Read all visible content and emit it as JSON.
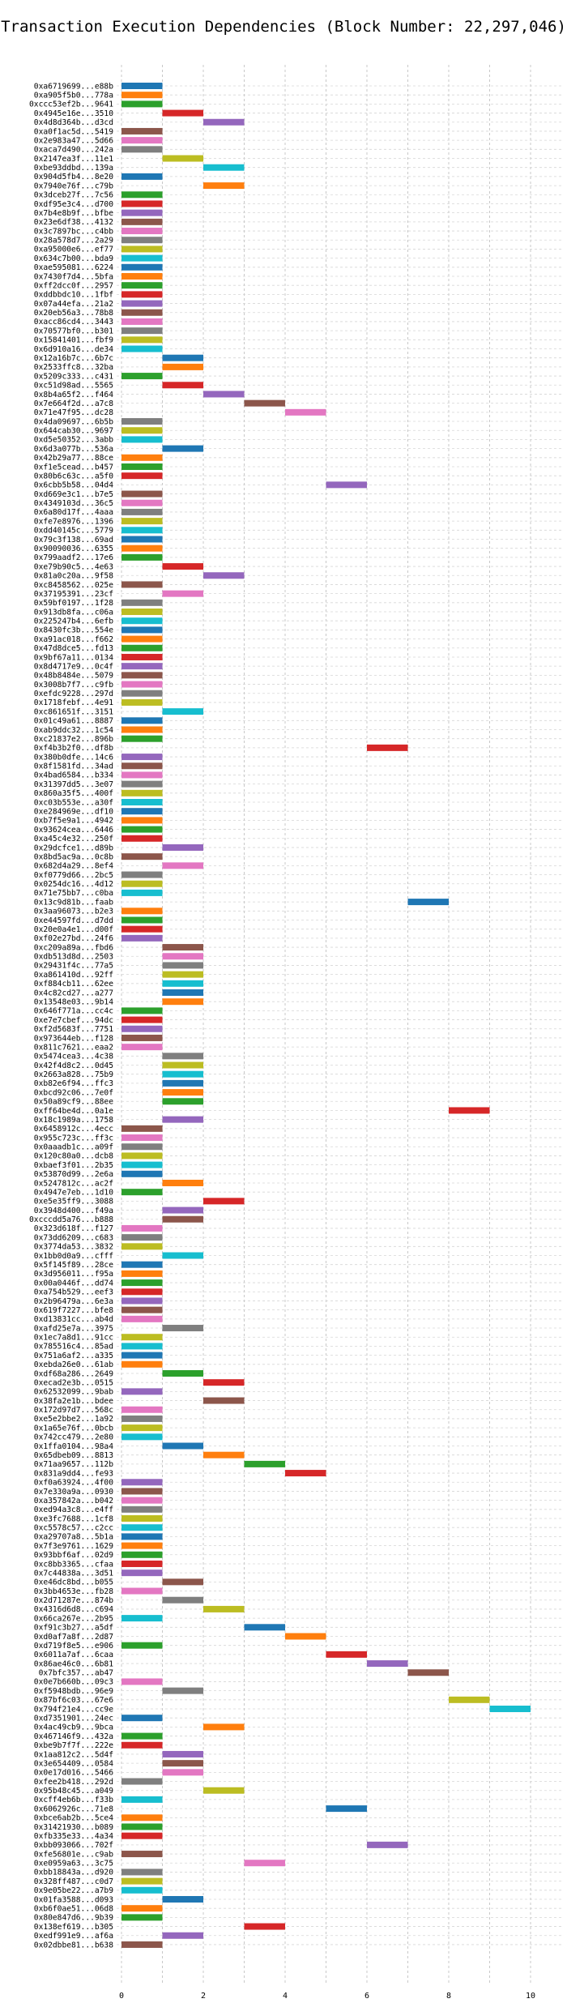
{
  "chart_data": {
    "type": "gantt",
    "title": "Transaction Execution Dependencies (Block Number: 22,297,046)",
    "xlabel": "",
    "ylabel": "",
    "xlim": [
      0,
      10.8
    ],
    "xticks": [
      0,
      2,
      4,
      6,
      8,
      10
    ],
    "grid": true,
    "legend": "none",
    "palette": [
      "#1f77b4",
      "#ff7f0e",
      "#2ca02c",
      "#d62728",
      "#9467bd",
      "#8c564b",
      "#e377c2",
      "#7f7f7f",
      "#bcbd22",
      "#17becf"
    ],
    "transactions": [
      {
        "tx": "0xa6719699...e88b",
        "start": 0
      },
      {
        "tx": "0xa905f5b0...778a",
        "start": 0
      },
      {
        "tx": "0xccc53ef2b...9641",
        "start": 0
      },
      {
        "tx": "0x4945e16e...3510",
        "start": 1
      },
      {
        "tx": "0x4d8d364b...d3cd",
        "start": 2
      },
      {
        "tx": "0xa0f1ac5d...5419",
        "start": 0
      },
      {
        "tx": "0x2e983a47...5d66",
        "start": 0
      },
      {
        "tx": "0xaca7d490...242a",
        "start": 0
      },
      {
        "tx": "0x2147ea3f...11e1",
        "start": 1
      },
      {
        "tx": "0xbe93ddbd...139a",
        "start": 2
      },
      {
        "tx": "0x904d5fb4...8e20",
        "start": 0
      },
      {
        "tx": "0x7940e76f...c79b",
        "start": 2
      },
      {
        "tx": "0x3dceb27f...7c56",
        "start": 0
      },
      {
        "tx": "0xdf95e3c4...d700",
        "start": 0
      },
      {
        "tx": "0x7b4e8b9f...bfbe",
        "start": 0
      },
      {
        "tx": "0x23e6df38...4132",
        "start": 0
      },
      {
        "tx": "0x3c7897bc...c4bb",
        "start": 0
      },
      {
        "tx": "0x28a578d7...2a29",
        "start": 0
      },
      {
        "tx": "0xa95000e6...ef77",
        "start": 0
      },
      {
        "tx": "0x634c7b00...bda9",
        "start": 0
      },
      {
        "tx": "0xae595081...6224",
        "start": 0
      },
      {
        "tx": "0x7430f7d4...5bfa",
        "start": 0
      },
      {
        "tx": "0xff2dcc0f...2957",
        "start": 0
      },
      {
        "tx": "0xddbbdc10...1fbf",
        "start": 0
      },
      {
        "tx": "0x07a44efa...21a2",
        "start": 0
      },
      {
        "tx": "0x20eb56a3...78b8",
        "start": 0
      },
      {
        "tx": "0xacc86cd4...3443",
        "start": 0
      },
      {
        "tx": "0x70577bf0...b301",
        "start": 0
      },
      {
        "tx": "0x15841401...fbf9",
        "start": 0
      },
      {
        "tx": "0x6d910a16...de34",
        "start": 0
      },
      {
        "tx": "0x12a16b7c...6b7c",
        "start": 1
      },
      {
        "tx": "0x2533ffc8...32ba",
        "start": 1
      },
      {
        "tx": "0x5209c333...c431",
        "start": 0
      },
      {
        "tx": "0xc51d98ad...5565",
        "start": 1
      },
      {
        "tx": "0x8b4a65f2...f464",
        "start": 2
      },
      {
        "tx": "0x7e664f2d...a7c8",
        "start": 3
      },
      {
        "tx": "0x71e47f95...dc28",
        "start": 4
      },
      {
        "tx": "0x4da09697...6b5b",
        "start": 0
      },
      {
        "tx": "0x644cab30...9697",
        "start": 0
      },
      {
        "tx": "0xd5e50352...3abb",
        "start": 0
      },
      {
        "tx": "0x6d3a077b...536a",
        "start": 1
      },
      {
        "tx": "0x42b29a77...88ce",
        "start": 0
      },
      {
        "tx": "0xf1e5cead...b457",
        "start": 0
      },
      {
        "tx": "0x80b6c63c...a5f0",
        "start": 0
      },
      {
        "tx": "0x6cbb5b58...04d4",
        "start": 5
      },
      {
        "tx": "0xd669e3c1...b7e5",
        "start": 0
      },
      {
        "tx": "0x4349103d...36c5",
        "start": 0
      },
      {
        "tx": "0x6a80d17f...4aaa",
        "start": 0
      },
      {
        "tx": "0xfe7e8976...1396",
        "start": 0
      },
      {
        "tx": "0xdd40145c...5779",
        "start": 0
      },
      {
        "tx": "0x79c3f138...69ad",
        "start": 0
      },
      {
        "tx": "0x90090036...6355",
        "start": 0
      },
      {
        "tx": "0x799aadf2...17e6",
        "start": 0
      },
      {
        "tx": "0xe79b90c5...4e63",
        "start": 1
      },
      {
        "tx": "0x81a0c20a...9f58",
        "start": 2
      },
      {
        "tx": "0xc8458562...025e",
        "start": 0
      },
      {
        "tx": "0x37195391...23cf",
        "start": 1
      },
      {
        "tx": "0x59bf0197...1f28",
        "start": 0
      },
      {
        "tx": "0x913db8fa...c06a",
        "start": 0
      },
      {
        "tx": "0x225247b4...6efb",
        "start": 0
      },
      {
        "tx": "0x8430fc3b...554e",
        "start": 0
      },
      {
        "tx": "0xa91ac018...f662",
        "start": 0
      },
      {
        "tx": "0x47d8dce5...fd13",
        "start": 0
      },
      {
        "tx": "0x9bf67a11...0134",
        "start": 0
      },
      {
        "tx": "0x8d4717e9...0c4f",
        "start": 0
      },
      {
        "tx": "0x48b8484e...5079",
        "start": 0
      },
      {
        "tx": "0x3008b7f7...c9fb",
        "start": 0
      },
      {
        "tx": "0xefdc9228...297d",
        "start": 0
      },
      {
        "tx": "0x1718febf...4e91",
        "start": 0
      },
      {
        "tx": "0xc861651f...3151",
        "start": 1
      },
      {
        "tx": "0x01c49a61...8887",
        "start": 0
      },
      {
        "tx": "0xab9ddc32...1c54",
        "start": 0
      },
      {
        "tx": "0xc21837e2...896b",
        "start": 0
      },
      {
        "tx": "0xf4b3b2f0...df8b",
        "start": 6
      },
      {
        "tx": "0x380b0dfe...14c6",
        "start": 0
      },
      {
        "tx": "0x8f1581fd...34ad",
        "start": 0
      },
      {
        "tx": "0x4bad6584...b334",
        "start": 0
      },
      {
        "tx": "0x31397dd5...3e07",
        "start": 0
      },
      {
        "tx": "0x860a35f5...400f",
        "start": 0
      },
      {
        "tx": "0xc03b553e...a30f",
        "start": 0
      },
      {
        "tx": "0xe284969e...df10",
        "start": 0
      },
      {
        "tx": "0xb7f5e9a1...4942",
        "start": 0
      },
      {
        "tx": "0x93624cea...6446",
        "start": 0
      },
      {
        "tx": "0xa45c4e32...250f",
        "start": 0
      },
      {
        "tx": "0x29dcfce1...d89b",
        "start": 1
      },
      {
        "tx": "0x8bd5ac9a...0c8b",
        "start": 0
      },
      {
        "tx": "0x682d4a29...8ef4",
        "start": 1
      },
      {
        "tx": "0xf0779d66...2bc5",
        "start": 0
      },
      {
        "tx": "0x0254dc16...4d12",
        "start": 0
      },
      {
        "tx": "0x71e75bb7...c0ba",
        "start": 0
      },
      {
        "tx": "0x13c9d81b...faab",
        "start": 7
      },
      {
        "tx": "0x3aa96073...b2e3",
        "start": 0
      },
      {
        "tx": "0xe44597fd...d7dd",
        "start": 0
      },
      {
        "tx": "0x20e0a4e1...d00f",
        "start": 0
      },
      {
        "tx": "0xf02e27bd...24f6",
        "start": 0
      },
      {
        "tx": "0xc209a89a...fbd6",
        "start": 1
      },
      {
        "tx": "0xdb513d8d...2503",
        "start": 1
      },
      {
        "tx": "0x29431f4c...77a5",
        "start": 1
      },
      {
        "tx": "0xa861410d...92ff",
        "start": 1
      },
      {
        "tx": "0xf884cb11...62ee",
        "start": 1
      },
      {
        "tx": "0x4c82cd27...a277",
        "start": 1
      },
      {
        "tx": "0x13548e03...9b14",
        "start": 1
      },
      {
        "tx": "0x646f771a...cc4c",
        "start": 0
      },
      {
        "tx": "0xe7e7cbef...94dc",
        "start": 0
      },
      {
        "tx": "0xf2d5683f...7751",
        "start": 0
      },
      {
        "tx": "0x973644eb...f128",
        "start": 0
      },
      {
        "tx": "0x811c7621...eaa2",
        "start": 0
      },
      {
        "tx": "0x5474cea3...4c38",
        "start": 1
      },
      {
        "tx": "0x42f4d8c2...0d45",
        "start": 1
      },
      {
        "tx": "0x2663a828...75b9",
        "start": 1
      },
      {
        "tx": "0xb82e6f94...ffc3",
        "start": 1
      },
      {
        "tx": "0xbcd92c06...7e0f",
        "start": 1
      },
      {
        "tx": "0x50a89cf9...88ee",
        "start": 1
      },
      {
        "tx": "0xff64be4d...0a1e",
        "start": 8
      },
      {
        "tx": "0x18c1989a...1758",
        "start": 1
      },
      {
        "tx": "0x6458912c...4ecc",
        "start": 0
      },
      {
        "tx": "0x955c723c...ff3c",
        "start": 0
      },
      {
        "tx": "0x0aaadb1c...a09f",
        "start": 0
      },
      {
        "tx": "0x120c80a0...dcb8",
        "start": 0
      },
      {
        "tx": "0xbaef3f01...2b35",
        "start": 0
      },
      {
        "tx": "0x53870d99...2e6a",
        "start": 0
      },
      {
        "tx": "0x5247812c...ac2f",
        "start": 1
      },
      {
        "tx": "0x4947e7eb...1d10",
        "start": 0
      },
      {
        "tx": "0xe5e35ff9...3088",
        "start": 2
      },
      {
        "tx": "0x3948d400...f49a",
        "start": 1
      },
      {
        "tx": "0xcccdd5a76...b888",
        "start": 1
      },
      {
        "tx": "0x323d618f...f127",
        "start": 0
      },
      {
        "tx": "0x73dd6209...c683",
        "start": 0
      },
      {
        "tx": "0x3774da53...3832",
        "start": 0
      },
      {
        "tx": "0x1bb0d0a9...cfff",
        "start": 1
      },
      {
        "tx": "0x5f145f89...28ce",
        "start": 0
      },
      {
        "tx": "0x3d956011...f95a",
        "start": 0
      },
      {
        "tx": "0x00a0446f...dd74",
        "start": 0
      },
      {
        "tx": "0xa754b529...eef3",
        "start": 0
      },
      {
        "tx": "0x2b96479a...6e3a",
        "start": 0
      },
      {
        "tx": "0x619f7227...bfe8",
        "start": 0
      },
      {
        "tx": "0xd13831cc...ab4d",
        "start": 0
      },
      {
        "tx": "0xafd25e7a...3975",
        "start": 1
      },
      {
        "tx": "0x1ec7a8d1...91cc",
        "start": 0
      },
      {
        "tx": "0x785516c4...85ad",
        "start": 0
      },
      {
        "tx": "0x751a6af2...a335",
        "start": 0
      },
      {
        "tx": "0xebda26e0...61ab",
        "start": 0
      },
      {
        "tx": "0xdf68a286...2649",
        "start": 1
      },
      {
        "tx": "0xecad2e3b...0515",
        "start": 2
      },
      {
        "tx": "0x62532099...9bab",
        "start": 0
      },
      {
        "tx": "0x38fa2e1b...bdee",
        "start": 2
      },
      {
        "tx": "0x172d97d7...568c",
        "start": 0
      },
      {
        "tx": "0xe5e2bbe2...1a92",
        "start": 0
      },
      {
        "tx": "0x1a65e76f...0bcb",
        "start": 0
      },
      {
        "tx": "0x742cc479...2e80",
        "start": 0
      },
      {
        "tx": "0x1ffa0104...98a4",
        "start": 1
      },
      {
        "tx": "0x65dbeb09...8813",
        "start": 2
      },
      {
        "tx": "0x71aa9657...112b",
        "start": 3
      },
      {
        "tx": "0x831a9dd4...fe93",
        "start": 4
      },
      {
        "tx": "0xf0a63924...4f00",
        "start": 0
      },
      {
        "tx": "0x7e330a9a...0930",
        "start": 0
      },
      {
        "tx": "0xa357842a...b042",
        "start": 0
      },
      {
        "tx": "0xed94a3c8...e4ff",
        "start": 0
      },
      {
        "tx": "0xe3fc7688...1cf8",
        "start": 0
      },
      {
        "tx": "0xc5578c57...c2cc",
        "start": 0
      },
      {
        "tx": "0xa29707a8...5b1a",
        "start": 0
      },
      {
        "tx": "0x7f3e9761...1629",
        "start": 0
      },
      {
        "tx": "0x93bbf6af...02d9",
        "start": 0
      },
      {
        "tx": "0xc8bb3365...cfaa",
        "start": 0
      },
      {
        "tx": "0x7c44838a...3d51",
        "start": 0
      },
      {
        "tx": "0xe46dc8bd...b055",
        "start": 1
      },
      {
        "tx": "0x3bb4653e...fb28",
        "start": 0
      },
      {
        "tx": "0x2d71287e...874b",
        "start": 1
      },
      {
        "tx": "0x4316d6d8...c694",
        "start": 2
      },
      {
        "tx": "0x66ca267e...2b95",
        "start": 0
      },
      {
        "tx": "0xf91c3b27...a5df",
        "start": 3
      },
      {
        "tx": "0xd0af7a8f...2d87",
        "start": 4
      },
      {
        "tx": "0xd719f8e5...e906",
        "start": 0
      },
      {
        "tx": "0x6011a7af...6caa",
        "start": 5
      },
      {
        "tx": "0x86ae46c0...6b81",
        "start": 6
      },
      {
        "tx": "0x7bfc357...ab47",
        "start": 7
      },
      {
        "tx": "0x0e7b660b...09c3",
        "start": 0
      },
      {
        "tx": "0xf5948bdb...96e9",
        "start": 1
      },
      {
        "tx": "0x87bf6c03...67e6",
        "start": 8
      },
      {
        "tx": "0x794f21e4...cc9e",
        "start": 9
      },
      {
        "tx": "0xd7351901...24ec",
        "start": 0
      },
      {
        "tx": "0x4ac49cb9...9bca",
        "start": 2
      },
      {
        "tx": "0x467146f9...432a",
        "start": 0
      },
      {
        "tx": "0xbe9b7f7f...222e",
        "start": 0
      },
      {
        "tx": "0x1aa812c2...5d4f",
        "start": 1
      },
      {
        "tx": "0x3e654409...0584",
        "start": 1
      },
      {
        "tx": "0x0e17d016...5466",
        "start": 1
      },
      {
        "tx": "0xfee2b418...292d",
        "start": 0
      },
      {
        "tx": "0x95b48c45...a049",
        "start": 2
      },
      {
        "tx": "0xcff4eb6b...f33b",
        "start": 0
      },
      {
        "tx": "0x6062926c...71e8",
        "start": 5
      },
      {
        "tx": "0xbce6ab2b...5ce4",
        "start": 0
      },
      {
        "tx": "0x31421930...b089",
        "start": 0
      },
      {
        "tx": "0xfb335e33...4a34",
        "start": 0
      },
      {
        "tx": "0xbb093066...702f",
        "start": 6
      },
      {
        "tx": "0xfe56801e...c9ab",
        "start": 0
      },
      {
        "tx": "0xe0959a63...3c75",
        "start": 3
      },
      {
        "tx": "0xbb18843a...d920",
        "start": 0
      },
      {
        "tx": "0x328ff487...c0d7",
        "start": 0
      },
      {
        "tx": "0x9e05be22...a7b9",
        "start": 0
      },
      {
        "tx": "0x01fa3588...d093",
        "start": 1
      },
      {
        "tx": "0xb6f0ae51...06d8",
        "start": 0
      },
      {
        "tx": "0x80e847d6...9b39",
        "start": 0
      },
      {
        "tx": "0x138ef619...b305",
        "start": 3
      },
      {
        "tx": "0xedf991e9...af6a",
        "start": 1
      },
      {
        "tx": "0x02dbbe81...b638",
        "start": 0
      }
    ]
  }
}
